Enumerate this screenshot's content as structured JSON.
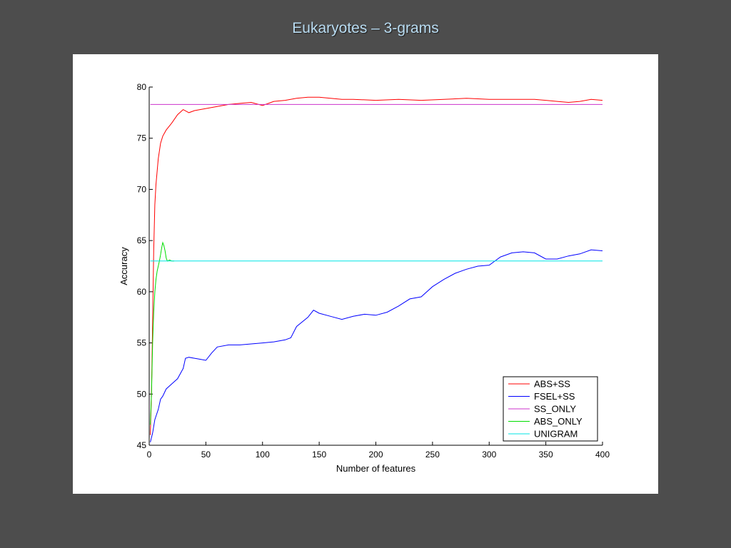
{
  "slide": {
    "title": "Eukaryotes – 3-grams"
  },
  "chart_data": {
    "type": "line",
    "title": "",
    "xlabel": "Number of features",
    "ylabel": "Accuracy",
    "xlim": [
      0,
      400
    ],
    "ylim": [
      45,
      80
    ],
    "xticks": [
      0,
      50,
      100,
      150,
      200,
      250,
      300,
      350,
      400
    ],
    "yticks": [
      45,
      50,
      55,
      60,
      65,
      70,
      75,
      80
    ],
    "grid": false,
    "legend_position": "bottom-right",
    "series": [
      {
        "name": "ABS+SS",
        "color": "#ff0000",
        "x": [
          1,
          2,
          3,
          4,
          5,
          6,
          8,
          10,
          12,
          15,
          20,
          25,
          30,
          35,
          40,
          50,
          60,
          70,
          80,
          90,
          100,
          110,
          120,
          130,
          140,
          150,
          160,
          170,
          180,
          200,
          220,
          240,
          260,
          280,
          300,
          320,
          340,
          360,
          370,
          380,
          390,
          400
        ],
        "y": [
          46,
          50,
          57,
          64,
          68.5,
          70.5,
          73,
          74.5,
          75.2,
          75.8,
          76.5,
          77.3,
          77.8,
          77.5,
          77.7,
          77.9,
          78.1,
          78.3,
          78.4,
          78.5,
          78.2,
          78.6,
          78.7,
          78.9,
          79.0,
          79.0,
          78.9,
          78.8,
          78.8,
          78.7,
          78.8,
          78.7,
          78.8,
          78.9,
          78.8,
          78.8,
          78.8,
          78.6,
          78.5,
          78.6,
          78.8,
          78.7
        ]
      },
      {
        "name": "FSEL+SS",
        "color": "#0000ff",
        "x": [
          1,
          3,
          5,
          8,
          10,
          12,
          15,
          20,
          25,
          30,
          32,
          35,
          40,
          45,
          50,
          55,
          60,
          70,
          80,
          90,
          100,
          110,
          120,
          125,
          130,
          140,
          145,
          150,
          160,
          170,
          180,
          190,
          200,
          210,
          220,
          230,
          240,
          250,
          260,
          270,
          280,
          290,
          300,
          310,
          320,
          330,
          340,
          350,
          360,
          370,
          380,
          390,
          400
        ],
        "y": [
          45.3,
          46.2,
          47.5,
          48.5,
          49.5,
          49.8,
          50.5,
          51.0,
          51.5,
          52.5,
          53.5,
          53.6,
          53.5,
          53.4,
          53.3,
          54.0,
          54.6,
          54.8,
          54.8,
          54.9,
          55.0,
          55.1,
          55.3,
          55.5,
          56.6,
          57.5,
          58.2,
          57.9,
          57.6,
          57.3,
          57.6,
          57.8,
          57.7,
          58.0,
          58.6,
          59.3,
          59.5,
          60.5,
          61.2,
          61.8,
          62.2,
          62.5,
          62.6,
          63.4,
          63.8,
          63.9,
          63.8,
          63.2,
          63.2,
          63.5,
          63.7,
          64.1,
          64.0
        ]
      },
      {
        "name": "SS_ONLY",
        "color": "#cc33cc",
        "x": [
          1,
          400
        ],
        "y": [
          78.3,
          78.3
        ]
      },
      {
        "name": "ABS_ONLY",
        "color": "#00dd00",
        "x": [
          1,
          2,
          3,
          4,
          5,
          6,
          7,
          8,
          9,
          10,
          11,
          12,
          13,
          14,
          15,
          16,
          18,
          20,
          22
        ],
        "y": [
          47,
          50,
          55,
          58,
          60,
          61.2,
          62,
          62.5,
          63,
          63.6,
          64.3,
          64.8,
          64.5,
          64.0,
          63.3,
          63.0,
          63.1,
          63.0,
          63.0
        ]
      },
      {
        "name": "UNIGRAM",
        "color": "#00e5e5",
        "x": [
          1,
          400
        ],
        "y": [
          63.0,
          63.0
        ]
      }
    ]
  }
}
